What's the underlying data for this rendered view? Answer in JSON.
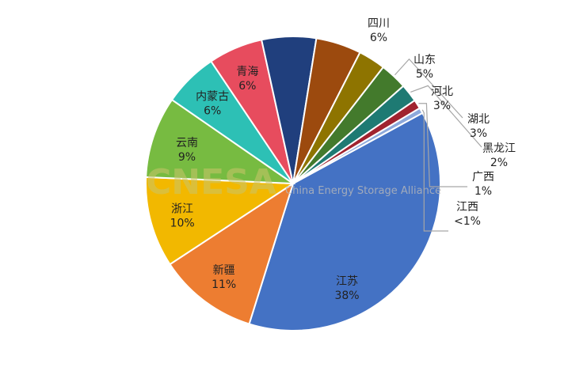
{
  "chart_data": {
    "type": "pie",
    "title": "",
    "watermark": {
      "logo": "CNESA",
      "text": "China Energy Storage Alliance"
    },
    "slices": [
      {
        "label": "江苏",
        "pct_label": "38%",
        "value": 38,
        "color": "#4472c4"
      },
      {
        "label": "新疆",
        "pct_label": "11%",
        "value": 11,
        "color": "#ed7d31"
      },
      {
        "label": "浙江",
        "pct_label": "10%",
        "value": 10,
        "color": "#f2b800"
      },
      {
        "label": "云南",
        "pct_label": "9%",
        "value": 9,
        "color": "#77bb41"
      },
      {
        "label": "内蒙古",
        "pct_label": "6%",
        "value": 6,
        "color": "#2dc0b5"
      },
      {
        "label": "青海",
        "pct_label": "6%",
        "value": 6,
        "color": "#e74c5e"
      },
      {
        "label": "四川",
        "pct_label": "6%",
        "value": 6,
        "color": "#203f7d"
      },
      {
        "label": "山东",
        "pct_label": "5%",
        "value": 5,
        "color": "#9c4a0e"
      },
      {
        "label": "河北",
        "pct_label": "3%",
        "value": 3,
        "color": "#8e7400"
      },
      {
        "label": "湖北",
        "pct_label": "3%",
        "value": 3,
        "color": "#437a2c"
      },
      {
        "label": "黑龙江",
        "pct_label": "2%",
        "value": 2,
        "color": "#1e7a73"
      },
      {
        "label": "广西",
        "pct_label": "1%",
        "value": 1,
        "color": "#a0232f"
      },
      {
        "label": "江西",
        "pct_label": "<1%",
        "value": 0.6,
        "color": "#8da9db"
      }
    ]
  }
}
